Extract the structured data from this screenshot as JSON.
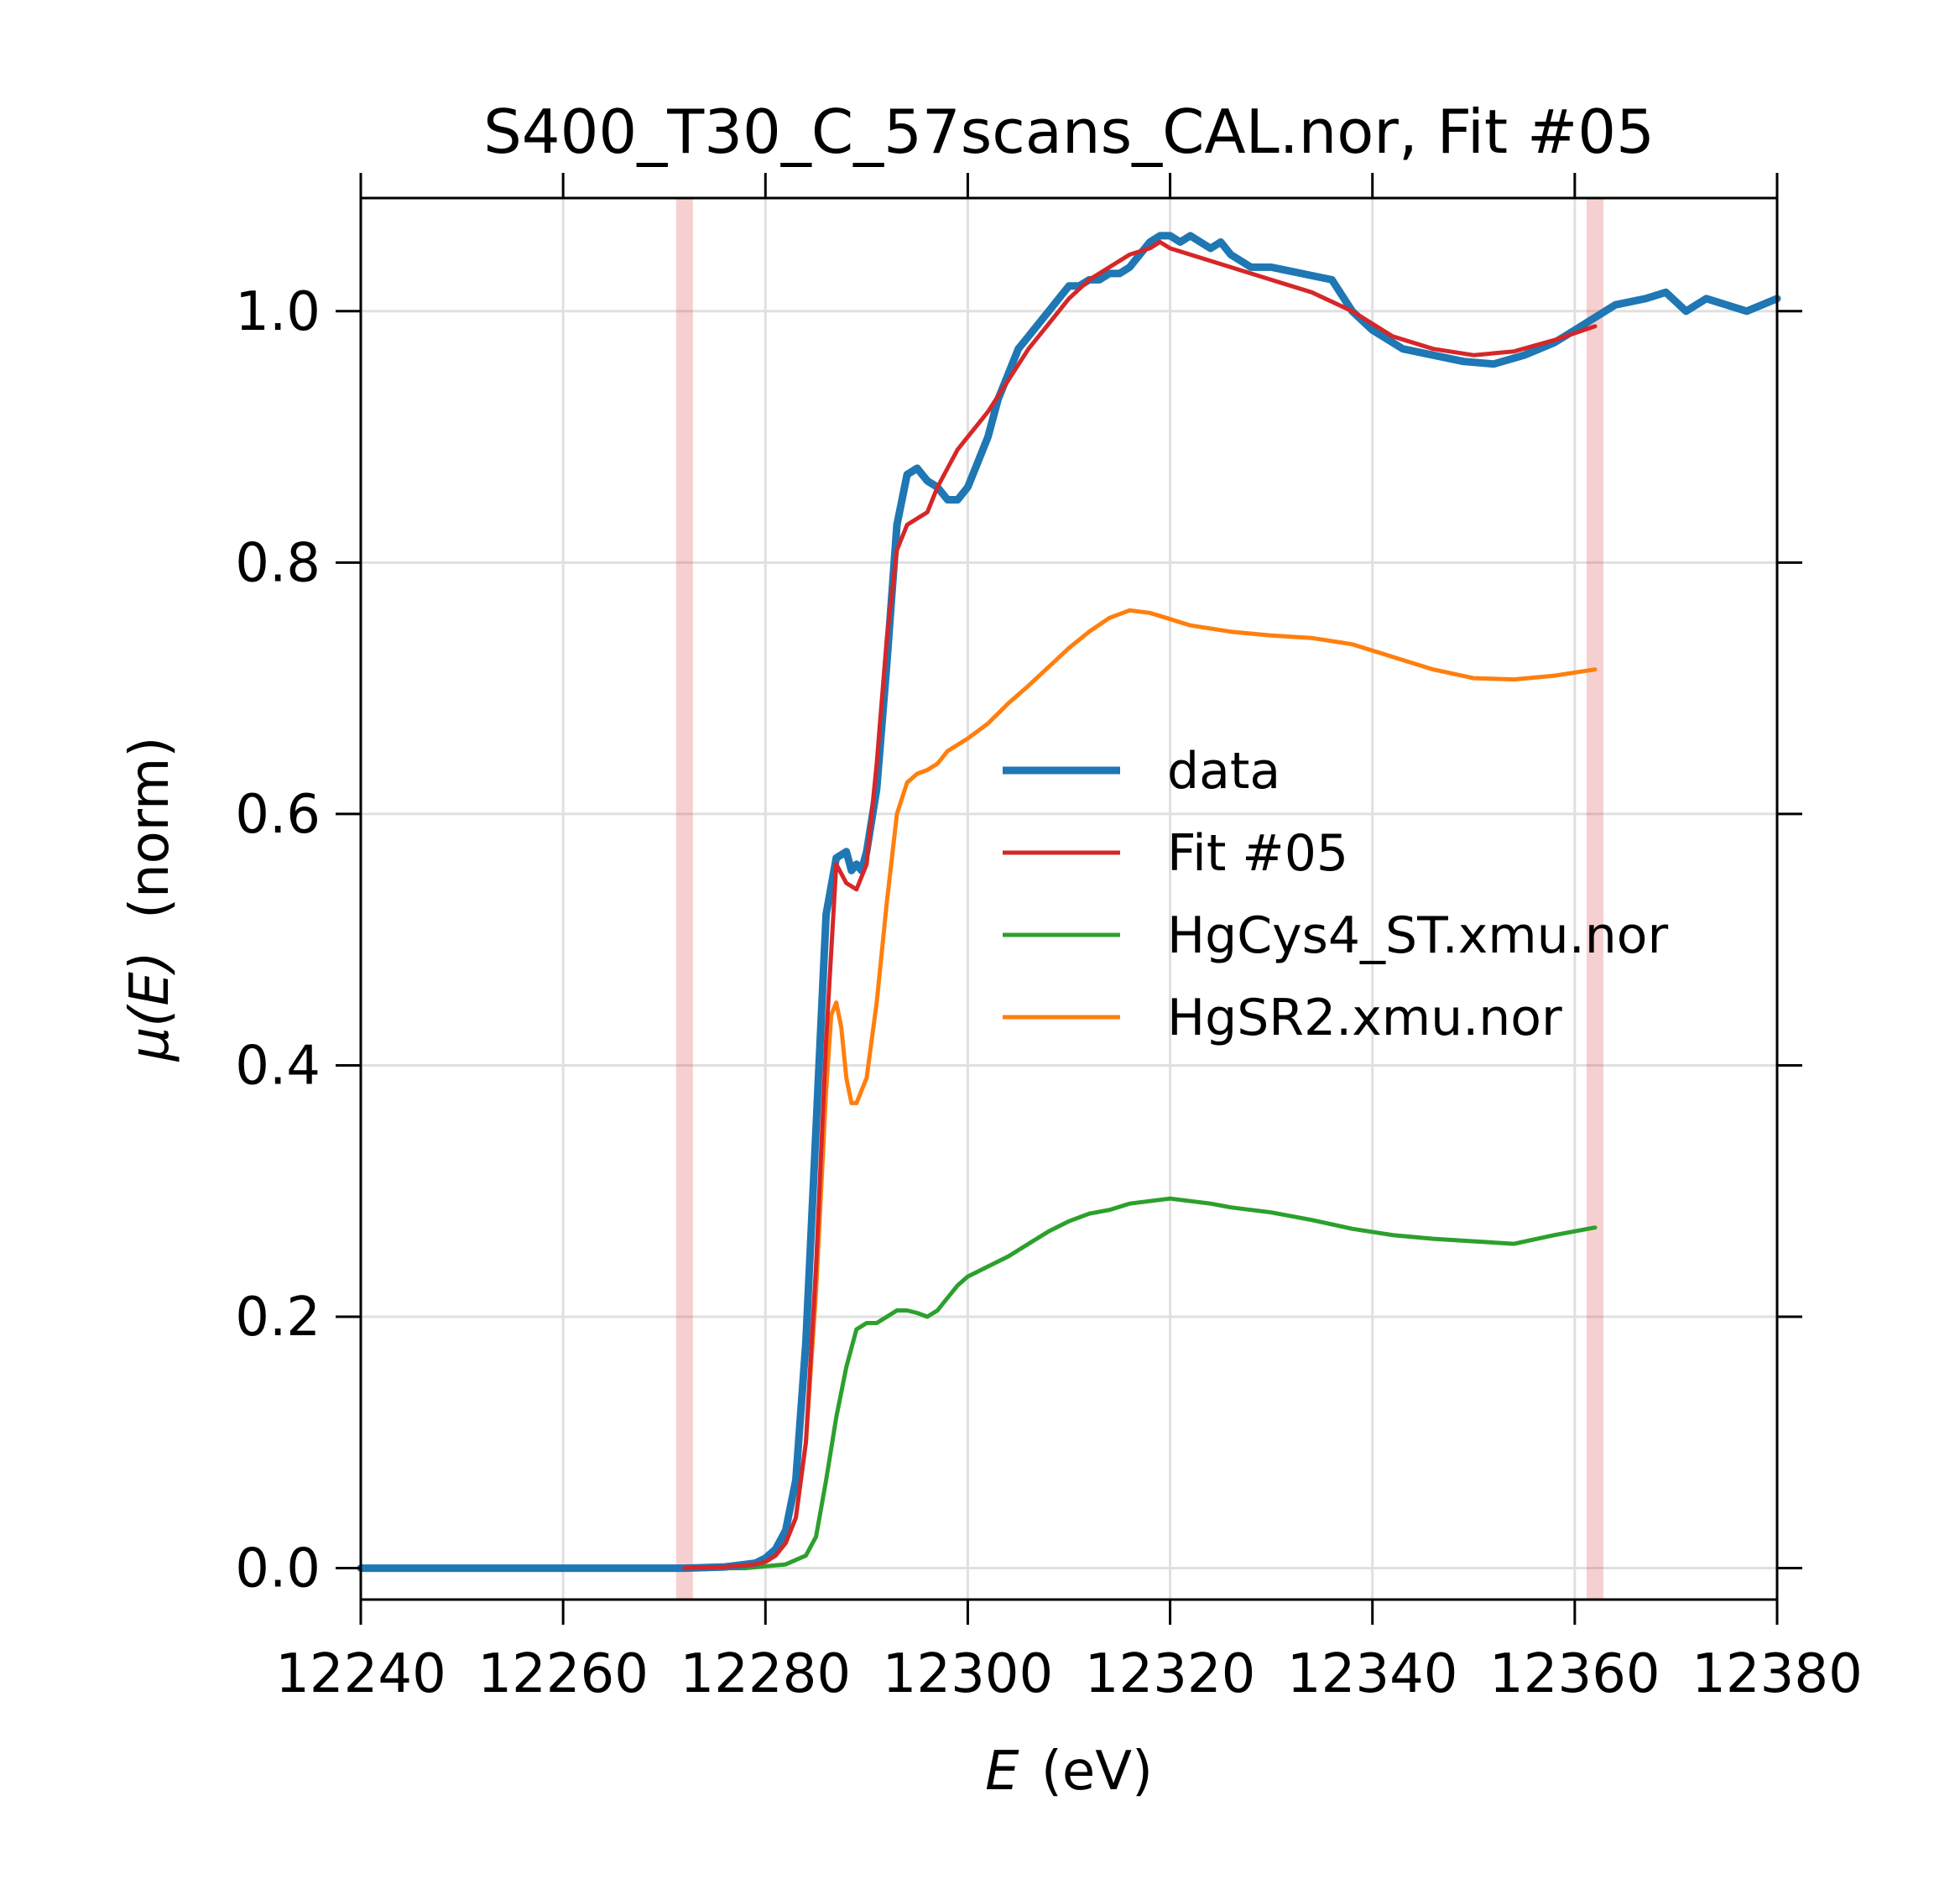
{
  "chart_data": {
    "type": "line",
    "title": "S400_T30_C_57scans_CAL.nor, Fit #05",
    "xlabel_var": "E",
    "xlabel_unit": "(eV)",
    "ylabel_var": "μ(E)",
    "ylabel_unit": "(norm)",
    "xlim": [
      12240,
      12380
    ],
    "ylim": [
      -0.025,
      1.09
    ],
    "xticks": [
      "12240",
      "12260",
      "12280",
      "12300",
      "12320",
      "12340",
      "12360",
      "12380"
    ],
    "yticks": [
      "0.0",
      "0.2",
      "0.4",
      "0.6",
      "0.8",
      "1.0"
    ],
    "grid": true,
    "legend_position": "center-right",
    "fit_range": [
      12272,
      12362
    ],
    "series": [
      {
        "name": "data",
        "color": "#1f77b4",
        "x": [
          12240,
          12250,
          12260,
          12270,
          12272,
          12276,
          12279,
          12280,
          12281,
          12282,
          12283,
          12284,
          12285,
          12286,
          12287,
          12288,
          12288.5,
          12289,
          12289.5,
          12290,
          12291,
          12292,
          12293,
          12294,
          12295,
          12296,
          12297,
          12298,
          12299,
          12300,
          12301,
          12302,
          12303,
          12304,
          12305,
          12306,
          12307,
          12308,
          12309,
          12310,
          12311,
          12312,
          12313,
          12314,
          12315,
          12316,
          12317,
          12318,
          12319,
          12320,
          12321,
          12322,
          12323,
          12324,
          12325,
          12326,
          12327,
          12328,
          12330,
          12333,
          12336,
          12338,
          12340,
          12343,
          12346,
          12349,
          12352,
          12355,
          12358,
          12360,
          12362,
          12364,
          12367,
          12369,
          12371,
          12373,
          12375,
          12377,
          12380
        ],
        "y": [
          0.0,
          0.0,
          0.0,
          0.0,
          0.0,
          0.001,
          0.004,
          0.008,
          0.015,
          0.03,
          0.07,
          0.18,
          0.35,
          0.52,
          0.565,
          0.57,
          0.555,
          0.56,
          0.555,
          0.57,
          0.62,
          0.72,
          0.83,
          0.87,
          0.875,
          0.865,
          0.86,
          0.85,
          0.85,
          0.86,
          0.88,
          0.9,
          0.93,
          0.95,
          0.97,
          0.98,
          0.99,
          1.0,
          1.01,
          1.02,
          1.02,
          1.025,
          1.025,
          1.03,
          1.03,
          1.035,
          1.045,
          1.055,
          1.06,
          1.06,
          1.055,
          1.06,
          1.055,
          1.05,
          1.055,
          1.045,
          1.04,
          1.035,
          1.035,
          1.03,
          1.025,
          1.0,
          0.985,
          0.97,
          0.965,
          0.96,
          0.958,
          0.965,
          0.975,
          0.985,
          0.995,
          1.005,
          1.01,
          1.015,
          1.0,
          1.01,
          1.005,
          1.0,
          1.01
        ]
      },
      {
        "name": "Fit #05",
        "color": "#d62728",
        "x": [
          12272,
          12276,
          12279,
          12280,
          12281,
          12282,
          12283,
          12284,
          12285,
          12286,
          12287,
          12288,
          12289,
          12290,
          12291,
          12292,
          12293,
          12294,
          12295,
          12296,
          12297,
          12298,
          12299,
          12300,
          12302,
          12304,
          12306,
          12308,
          12310,
          12312,
          12314,
          12316,
          12318,
          12319,
          12320,
          12322,
          12324,
          12326,
          12328,
          12330,
          12334,
          12338,
          12342,
          12346,
          12350,
          12354,
          12358,
          12362
        ],
        "y": [
          0.0,
          0.001,
          0.003,
          0.005,
          0.01,
          0.02,
          0.04,
          0.1,
          0.24,
          0.42,
          0.56,
          0.545,
          0.54,
          0.56,
          0.64,
          0.74,
          0.81,
          0.83,
          0.835,
          0.84,
          0.86,
          0.875,
          0.89,
          0.9,
          0.92,
          0.945,
          0.97,
          0.99,
          1.01,
          1.025,
          1.035,
          1.045,
          1.05,
          1.055,
          1.05,
          1.045,
          1.04,
          1.035,
          1.03,
          1.025,
          1.015,
          1.0,
          0.98,
          0.97,
          0.965,
          0.968,
          0.977,
          0.988
        ]
      },
      {
        "name": "HgCys4_ST.xmu.nor",
        "color": "#2ca02c",
        "x": [
          12272,
          12278,
          12282,
          12284,
          12285,
          12286,
          12287,
          12288,
          12289,
          12290,
          12291,
          12292,
          12293,
          12294,
          12295,
          12296,
          12297,
          12298,
          12299,
          12300,
          12302,
          12304,
          12306,
          12308,
          12310,
          12312,
          12314,
          12316,
          12318,
          12320,
          12322,
          12324,
          12326,
          12330,
          12334,
          12338,
          12342,
          12346,
          12350,
          12354,
          12358,
          12362
        ],
        "y": [
          0.0,
          0.0,
          0.003,
          0.01,
          0.025,
          0.07,
          0.12,
          0.16,
          0.19,
          0.195,
          0.195,
          0.2,
          0.205,
          0.205,
          0.203,
          0.2,
          0.205,
          0.215,
          0.225,
          0.232,
          0.24,
          0.248,
          0.258,
          0.268,
          0.276,
          0.282,
          0.285,
          0.29,
          0.292,
          0.294,
          0.292,
          0.29,
          0.287,
          0.283,
          0.277,
          0.27,
          0.265,
          0.262,
          0.26,
          0.258,
          0.265,
          0.271
        ]
      },
      {
        "name": "HgSR2.xmu.nor",
        "color": "#ff7f0e",
        "x": [
          12272,
          12276,
          12279,
          12280,
          12281,
          12282,
          12283,
          12284,
          12285,
          12286,
          12286.5,
          12287,
          12287.5,
          12288,
          12288.5,
          12289,
          12290,
          12291,
          12292,
          12293,
          12294,
          12295,
          12296,
          12297,
          12298,
          12300,
          12302,
          12304,
          12306,
          12308,
          12310,
          12312,
          12314,
          12316,
          12318,
          12320,
          12322,
          12326,
          12330,
          12334,
          12338,
          12342,
          12346,
          12350,
          12354,
          12358,
          12362
        ],
        "y": [
          0.0,
          0.001,
          0.003,
          0.005,
          0.01,
          0.02,
          0.04,
          0.1,
          0.22,
          0.38,
          0.44,
          0.45,
          0.43,
          0.39,
          0.37,
          0.37,
          0.39,
          0.45,
          0.53,
          0.6,
          0.625,
          0.632,
          0.635,
          0.64,
          0.65,
          0.66,
          0.672,
          0.688,
          0.702,
          0.717,
          0.732,
          0.745,
          0.756,
          0.762,
          0.76,
          0.755,
          0.75,
          0.745,
          0.742,
          0.74,
          0.735,
          0.725,
          0.715,
          0.708,
          0.707,
          0.71,
          0.715
        ]
      }
    ]
  }
}
